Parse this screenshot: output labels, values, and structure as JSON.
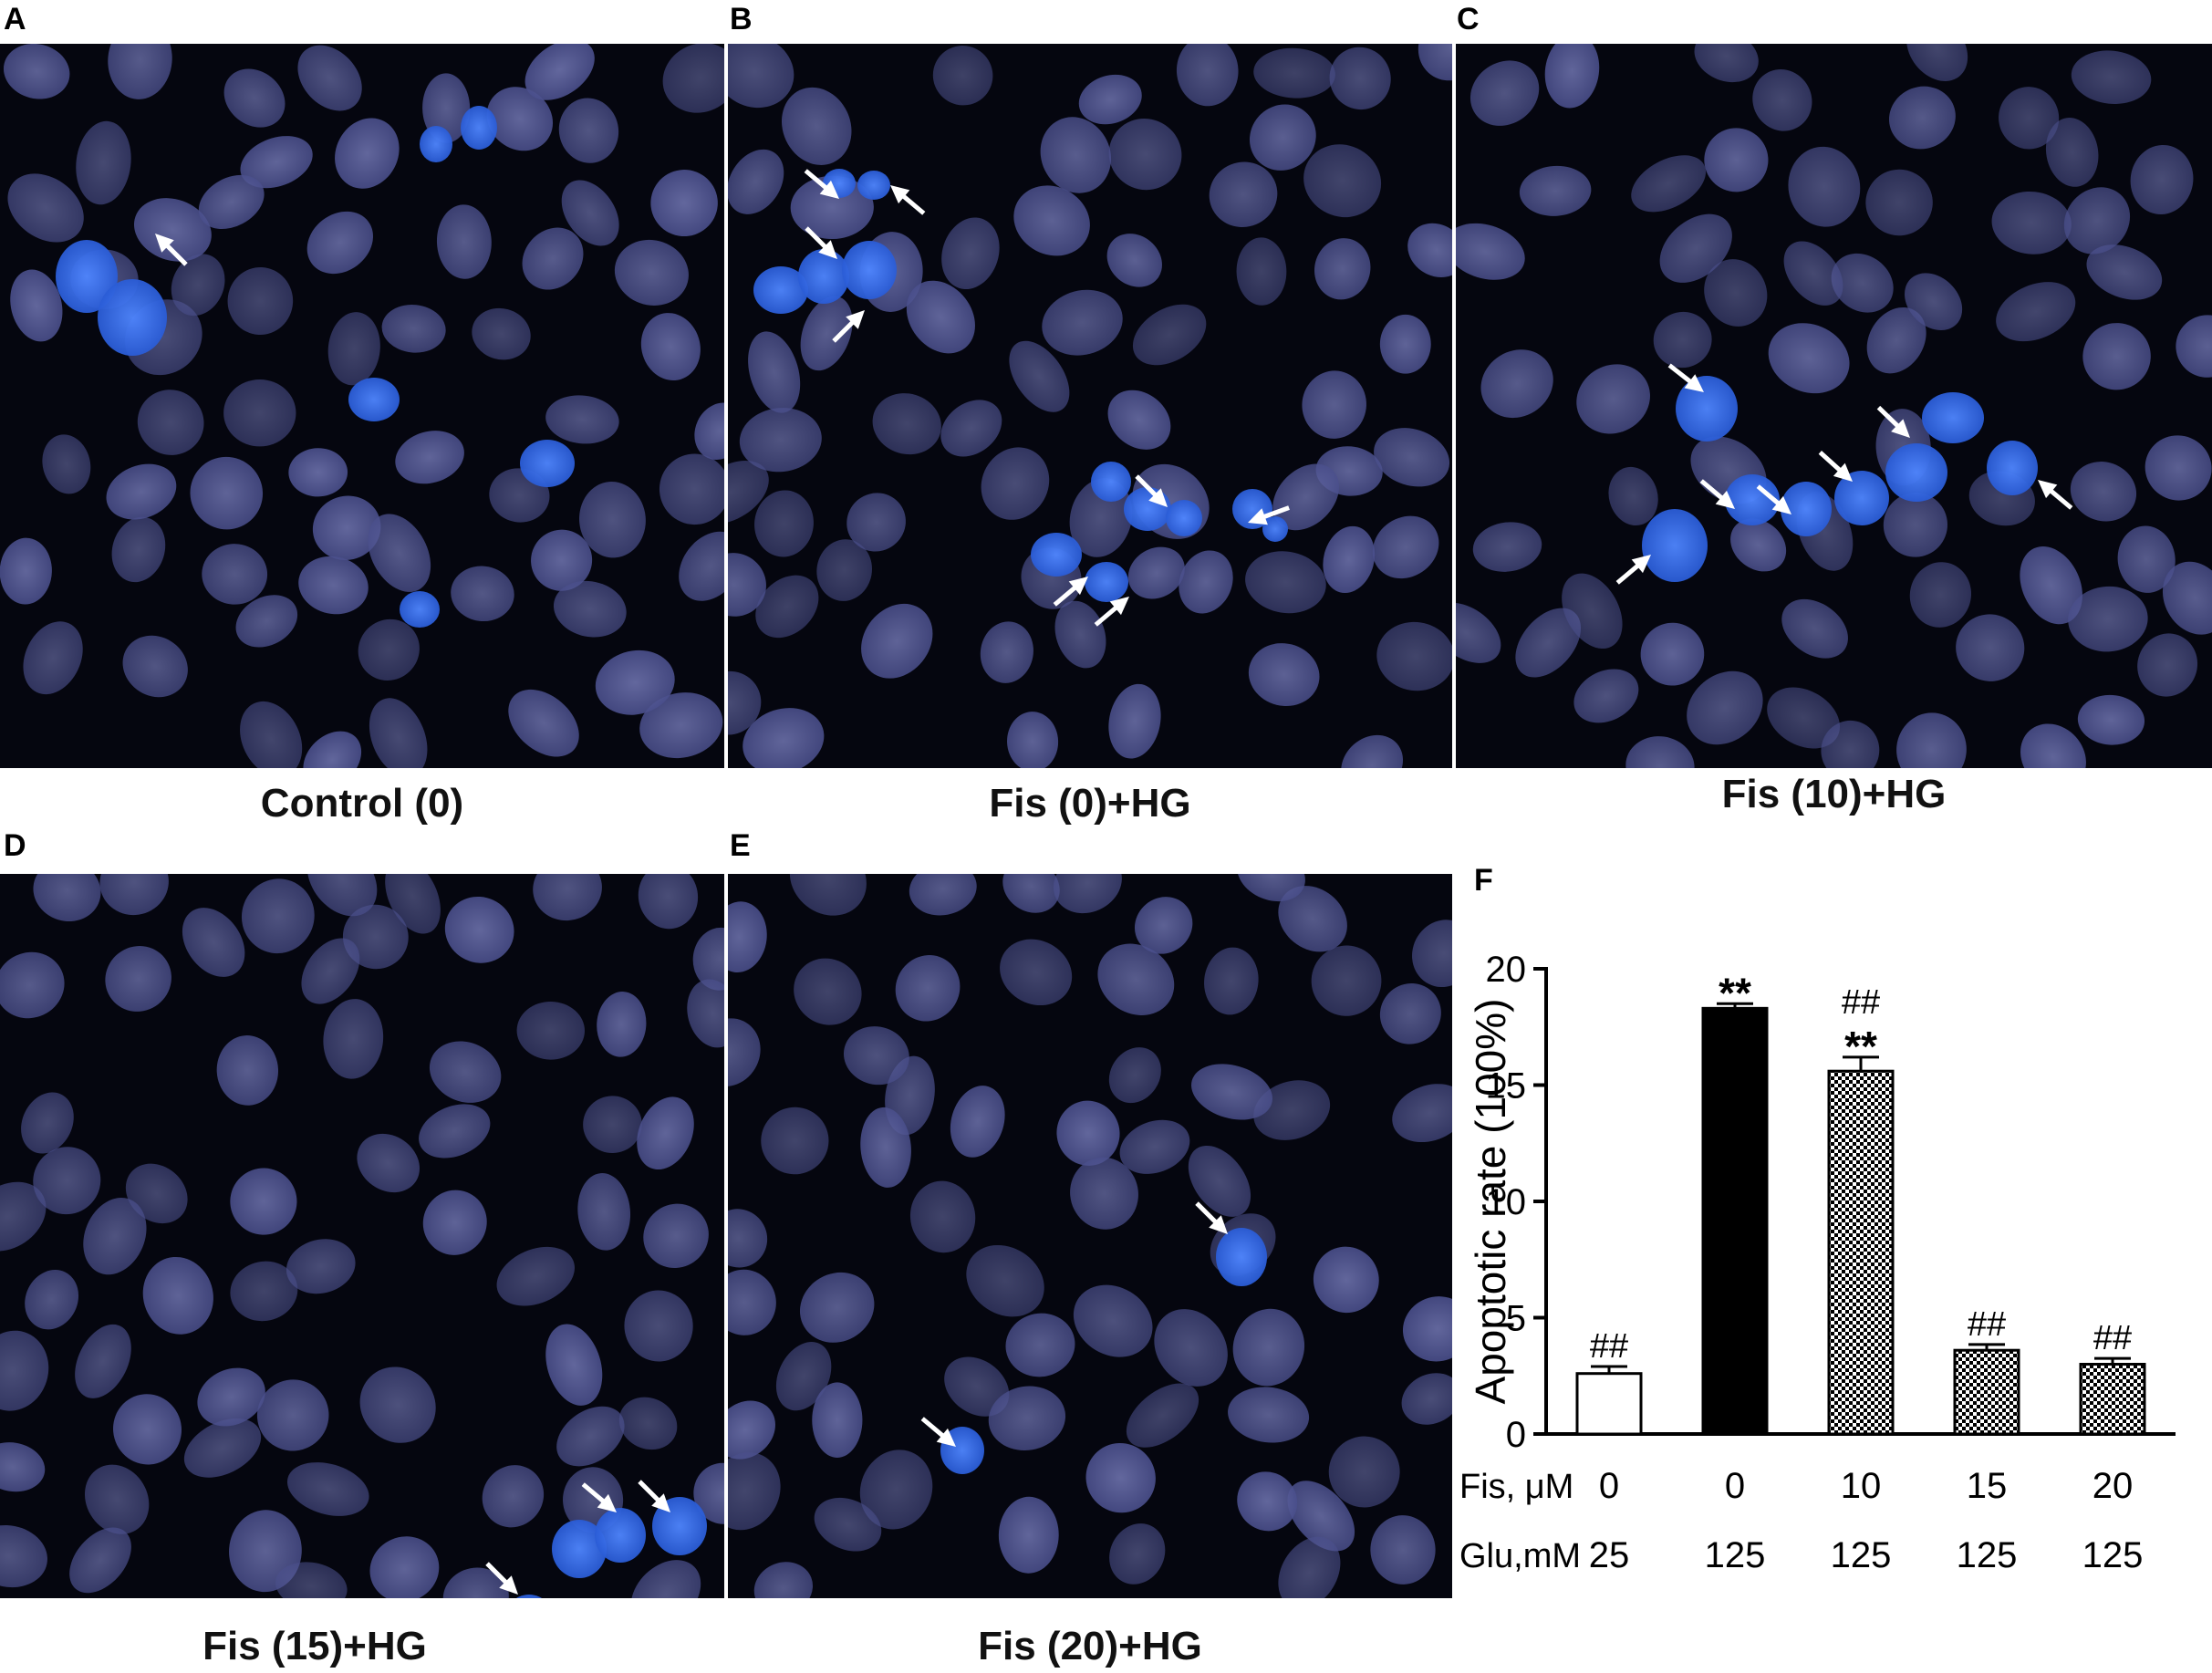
{
  "panels": [
    {
      "letter": "A",
      "caption": "Control (0)"
    },
    {
      "letter": "B",
      "caption": "Fis (0)+HG"
    },
    {
      "letter": "C",
      "caption": "Fis (10)+HG"
    },
    {
      "letter": "D",
      "caption": "Fis (15)+HG"
    },
    {
      "letter": "E",
      "caption": "Fis (20)+HG"
    },
    {
      "letter": "F",
      "caption": ""
    }
  ],
  "colors": {
    "nucleus_dim": "#4a4f8c",
    "nucleus_bright": "#2a5cd6",
    "background": "#05060f",
    "arrow": "#ffffff"
  },
  "chart_data": {
    "type": "bar",
    "ylabel": "Apoptotic rate (100%)",
    "ylim": [
      0,
      20
    ],
    "yticks": [
      0,
      5,
      10,
      15,
      20
    ],
    "row_labels": [
      "Fis, μM",
      "Glu,mM"
    ],
    "fis": [
      "0",
      "0",
      "10",
      "15",
      "20"
    ],
    "glu": [
      "25",
      "125",
      "125",
      "125",
      "125"
    ],
    "values": [
      2.6,
      18.3,
      15.6,
      3.6,
      3.0
    ],
    "errors": [
      0.3,
      0.2,
      0.6,
      0.25,
      0.25
    ],
    "fills": [
      "white",
      "black",
      "checker",
      "checker",
      "checker"
    ],
    "annotations": [
      [
        "##"
      ],
      [
        "**"
      ],
      [
        "**",
        "##"
      ],
      [
        "##"
      ],
      [
        "##"
      ]
    ]
  }
}
